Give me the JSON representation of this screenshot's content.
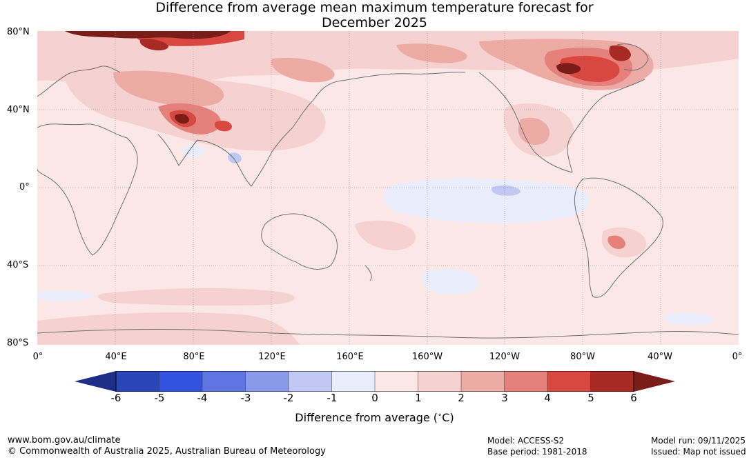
{
  "title_line1": "Difference from average mean maximum temperature forecast for",
  "title_line2": "December 2025",
  "lat_labels": [
    "80°N",
    "40°N",
    "0°",
    "40°S",
    "80°S"
  ],
  "lon_labels": [
    "0°",
    "40°E",
    "80°E",
    "120°E",
    "160°E",
    "160°W",
    "120°W",
    "80°W",
    "40°W",
    "0°"
  ],
  "legend": {
    "ticks": [
      "-6",
      "-5",
      "-4",
      "-3",
      "-2",
      "-1",
      "0",
      "1",
      "2",
      "3",
      "4",
      "5",
      "6"
    ],
    "label": "Difference from average (",
    "label_unit": "C)",
    "colors": [
      "#1e2d85",
      "#2a45b8",
      "#3452e0",
      "#5f75e2",
      "#8a99ea",
      "#c0c8f3",
      "#e8ecfb",
      "#fbe8e6",
      "#f5d2cf",
      "#edaba5",
      "#e6807a",
      "#d94840",
      "#a82a24",
      "#7a1c18"
    ]
  },
  "footer": {
    "site": "www.bom.gov.au/climate",
    "copyright": "© Commonwealth of Australia 2025, Australian Bureau of Meteorology",
    "model": "Model: ACCESS-S2",
    "base_period": "Base period: 1981-2018",
    "model_run": "Model run: 09/11/2025",
    "issued": "Issued: Map not issued"
  }
}
